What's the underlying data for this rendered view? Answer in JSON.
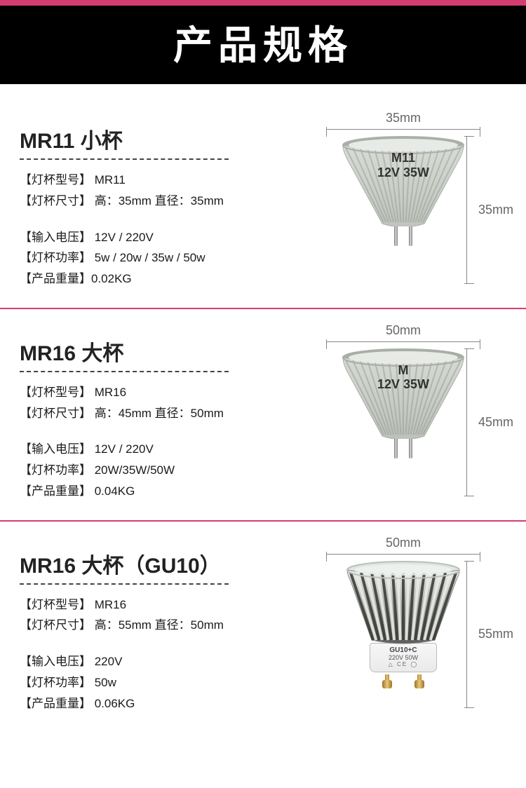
{
  "colors": {
    "header_bg": "#000000",
    "header_text": "#ffffff",
    "divider": "#d43d6e",
    "dim_line": "#888888",
    "dim_text": "#666666",
    "text": "#1a1a1a"
  },
  "header": {
    "title": "产品规格"
  },
  "products": [
    {
      "key": "mr11",
      "title": "MR11 小杯",
      "specs": {
        "model_label": "【灯杯型号】",
        "model_value": " MR11",
        "size_label": "【灯杯尺寸】",
        "size_value": " 高：35mm 直径：35mm",
        "voltage_label": "【输入电压】",
        "voltage_value": " 12V  /  220V",
        "power_label": "【灯杯功率】",
        "power_value": "  5w / 20w / 35w / 50w",
        "weight_label": "【产品重量】",
        "weight_value": "0.02KG"
      },
      "dimensions": {
        "width": "35mm",
        "height": "35mm"
      },
      "bulb_text": {
        "line1": "M11",
        "line2": "12V 35W"
      },
      "bulb_style": {
        "type": "mr",
        "cup_fill_top": "#d8dcd6",
        "cup_fill_bottom": "#bfc4bd",
        "rim_color": "#aab0a8",
        "ridge_color": "#9aa098"
      }
    },
    {
      "key": "mr16",
      "title": "MR16 大杯",
      "specs": {
        "model_label": "【灯杯型号】",
        "model_value": "  MR16",
        "size_label": "【灯杯尺寸】",
        "size_value": " 高：45mm 直径：50mm",
        "voltage_label": "【输入电压】",
        "voltage_value": " 12V  /  220V",
        "power_label": "【灯杯功率】",
        "power_value": "  20W/35W/50W",
        "weight_label": "【产品重量】",
        "weight_value": "  0.04KG"
      },
      "dimensions": {
        "width": "50mm",
        "height": "45mm"
      },
      "bulb_text": {
        "line1": "M",
        "line2": "12V 35W"
      },
      "bulb_style": {
        "type": "mr",
        "cup_fill_top": "#d6dad4",
        "cup_fill_bottom": "#bcc2ba",
        "rim_color": "#a8aea6",
        "ridge_color": "#989e96"
      }
    },
    {
      "key": "gu10",
      "title": "MR16 大杯（GU10）",
      "specs": {
        "model_label": "【灯杯型号】",
        "model_value": "  MR16",
        "size_label": "【灯杯尺寸】",
        "size_value": " 高：55mm 直径：50mm",
        "voltage_label": "【输入电压】",
        "voltage_value": " 220V",
        "power_label": "【灯杯功率】",
        "power_value": " 50w",
        "weight_label": "【产品重量】",
        "weight_value": "  0.06KG"
      },
      "dimensions": {
        "width": "50mm",
        "height": "55mm"
      },
      "gu_base": {
        "line1": "GU10+C",
        "line2": "220V 50W",
        "icons": "△ CE ◯"
      },
      "bulb_style": {
        "type": "gu10",
        "glass_fill": "#dfe6e2",
        "reflector_top": "#f0f2ef",
        "reflector_bottom": "#5a5e58",
        "ridge_dark": "#3c3f3a",
        "ridge_light": "#e8ebe6"
      }
    }
  ]
}
